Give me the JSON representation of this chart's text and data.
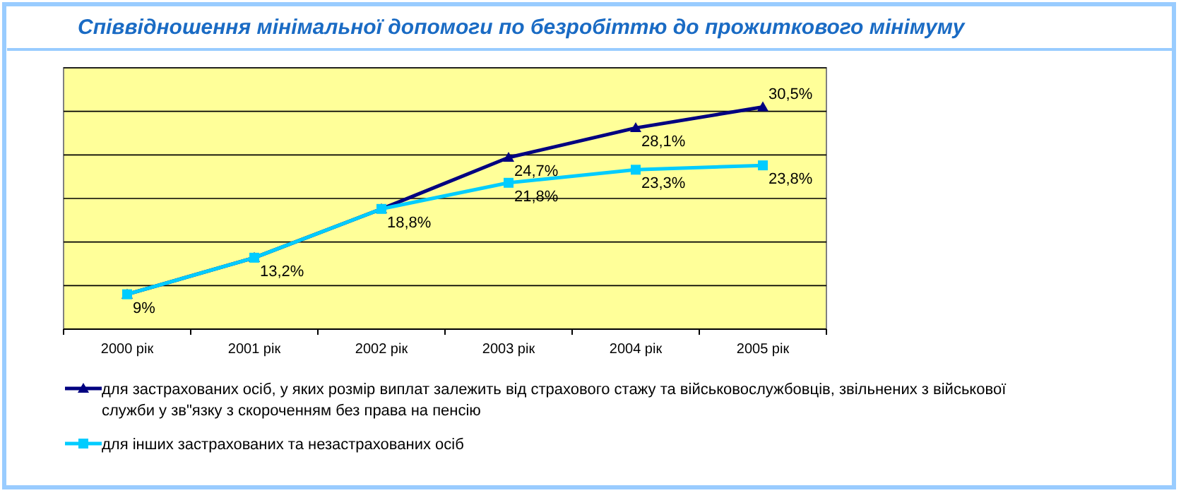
{
  "chart_data": {
    "type": "line",
    "title": "Співвідношення мінімальної допомоги по безробіттю до прожиткового мінімуму",
    "categories": [
      "2000 рік",
      "2001 рік",
      "2002 рік",
      "2003 рік",
      "2004 рік",
      "2005 рік"
    ],
    "series": [
      {
        "name": "для застрахованих осіб, у яких розмір виплат залежить від страхового стажу та військовослужбовців, звільнених з військової служби у зв\"язку з скороченням без права на пенсію",
        "color": "#000080",
        "marker": "triangle",
        "values": [
          9,
          13.2,
          18.8,
          24.7,
          28.1,
          30.5
        ],
        "value_labels": [
          null,
          null,
          null,
          "24,7%",
          "28,1%",
          "30,5%"
        ]
      },
      {
        "name": "для інших застрахованих та незастрахованих осіб",
        "color": "#00ccff",
        "marker": "square",
        "values": [
          9,
          13.2,
          18.8,
          21.8,
          23.3,
          23.8
        ],
        "value_labels": [
          "9%",
          "13,2%",
          "18,8%",
          "21,8%",
          "23,3%",
          "23,8%"
        ]
      }
    ],
    "ylim": [
      5,
      35
    ],
    "yticks": [
      {
        "value": 5,
        "label": null
      },
      {
        "value": 10,
        "label": null
      },
      {
        "value": 15,
        "label": null
      },
      {
        "value": 20,
        "label": null
      },
      {
        "value": 25,
        "label": null
      },
      {
        "value": 30,
        "label": null
      },
      {
        "value": 35,
        "label": null
      }
    ],
    "tick_labels": "x",
    "grid": "y",
    "legend": "bottom",
    "line_style": "solid"
  }
}
